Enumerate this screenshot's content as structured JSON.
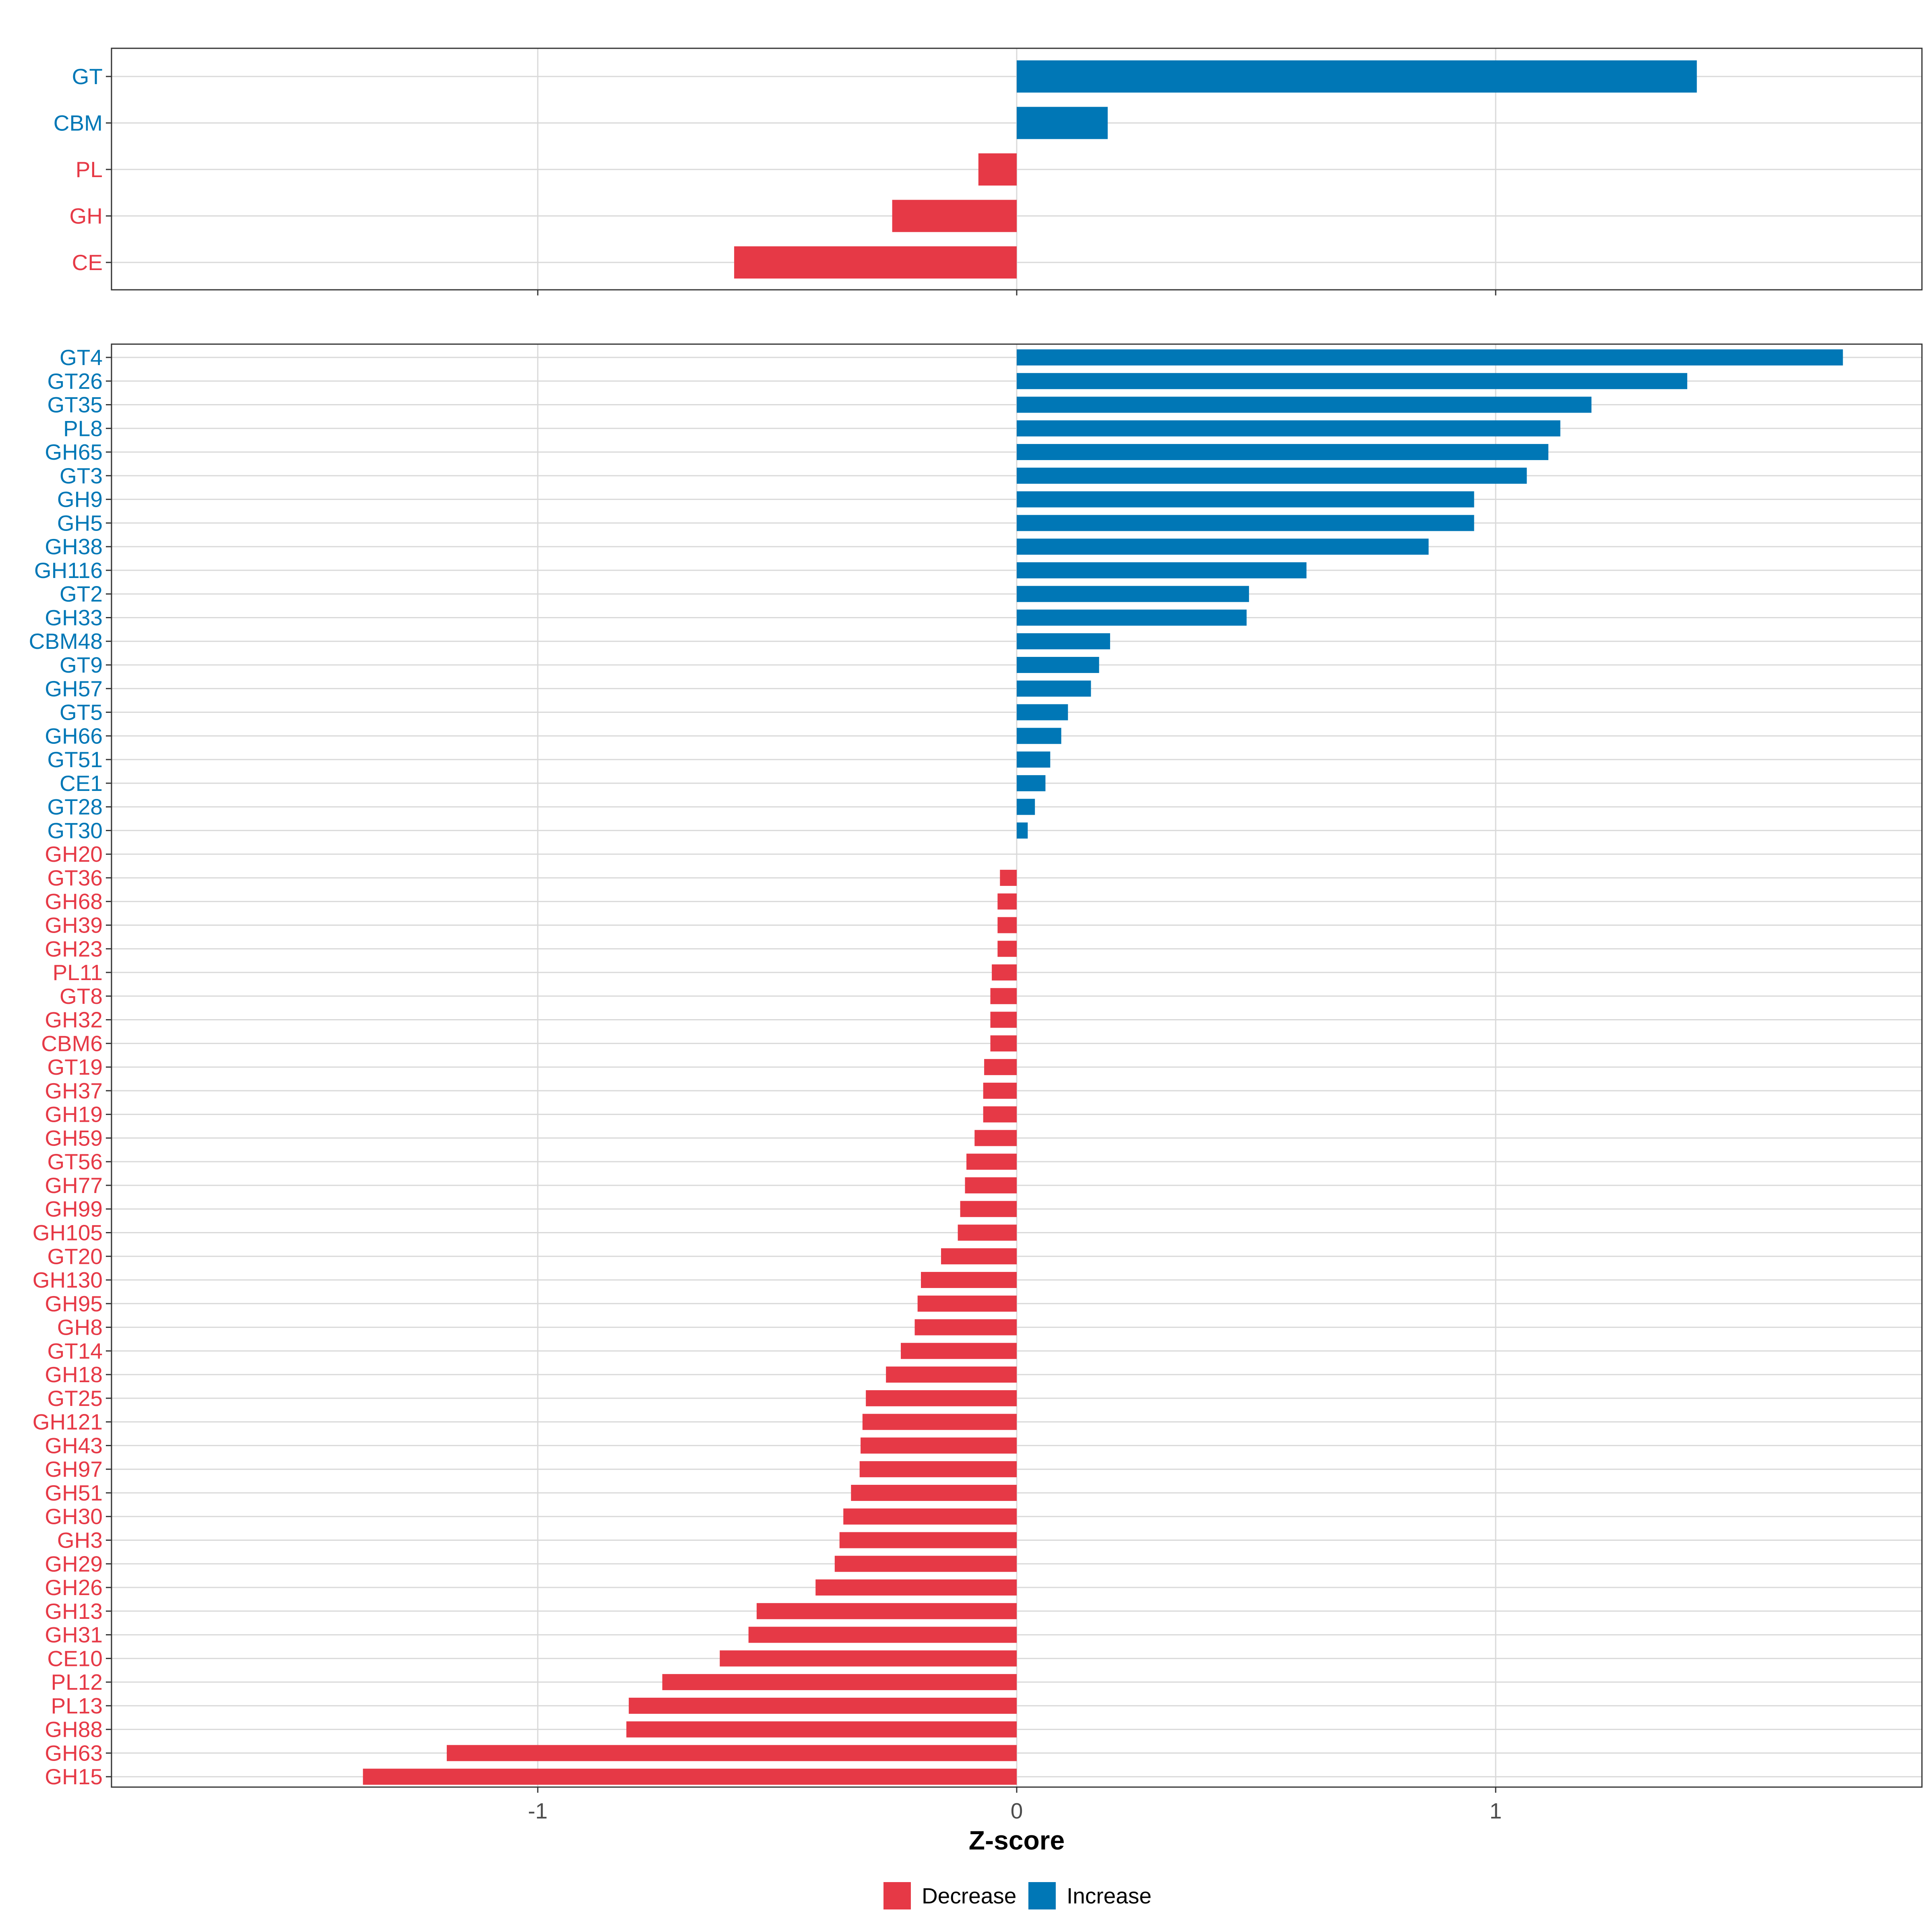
{
  "colors": {
    "decrease": "#E63946",
    "increase": "#0077B6",
    "grid": "#D9D9D9",
    "panel_border": "#333333"
  },
  "chart_data": [
    {
      "type": "bar",
      "orientation": "horizontal",
      "panel": "top",
      "categories": [
        "GT",
        "CBM",
        "PL",
        "GH",
        "CE"
      ],
      "values": [
        1.42,
        0.19,
        -0.08,
        -0.26,
        -0.59
      ],
      "directions": [
        "Increase",
        "Increase",
        "Decrease",
        "Decrease",
        "Decrease"
      ],
      "xlim": [
        -1.89,
        1.89
      ]
    },
    {
      "type": "bar",
      "orientation": "horizontal",
      "panel": "bottom",
      "categories": [
        "GT4",
        "GT26",
        "GT35",
        "PL8",
        "GH65",
        "GT3",
        "GH9",
        "GH5",
        "GH38",
        "GH116",
        "GT2",
        "GH33",
        "CBM48",
        "GT9",
        "GH57",
        "GT5",
        "GH66",
        "GT51",
        "CE1",
        "GT28",
        "GT30",
        "GH20",
        "GT36",
        "GH68",
        "GH39",
        "GH23",
        "PL11",
        "GT8",
        "GH32",
        "CBM6",
        "GT19",
        "GH37",
        "GH19",
        "GH59",
        "GT56",
        "GH77",
        "GH99",
        "GH105",
        "GT20",
        "GH130",
        "GH95",
        "GH8",
        "GT14",
        "GH18",
        "GT25",
        "GH121",
        "GH43",
        "GH97",
        "GH51",
        "GH30",
        "GH3",
        "GH29",
        "GH26",
        "GH13",
        "GH31",
        "CE10",
        "PL12",
        "PL13",
        "GH88",
        "GH63",
        "GH15"
      ],
      "values": [
        1.725,
        1.4,
        1.2,
        1.135,
        1.11,
        1.065,
        0.955,
        0.955,
        0.86,
        0.605,
        0.485,
        0.48,
        0.195,
        0.172,
        0.155,
        0.107,
        0.093,
        0.07,
        0.06,
        0.038,
        0.023,
        0.0,
        -0.035,
        -0.04,
        -0.04,
        -0.04,
        -0.052,
        -0.055,
        -0.055,
        -0.055,
        -0.068,
        -0.07,
        -0.07,
        -0.088,
        -0.105,
        -0.108,
        -0.118,
        -0.123,
        -0.158,
        -0.2,
        -0.207,
        -0.213,
        -0.242,
        -0.273,
        -0.315,
        -0.322,
        -0.326,
        -0.328,
        -0.346,
        -0.362,
        -0.37,
        -0.38,
        -0.42,
        -0.543,
        -0.56,
        -0.62,
        -0.74,
        -0.81,
        -0.815,
        -1.19,
        -1.365
      ],
      "directions": [
        "Increase",
        "Increase",
        "Increase",
        "Increase",
        "Increase",
        "Increase",
        "Increase",
        "Increase",
        "Increase",
        "Increase",
        "Increase",
        "Increase",
        "Increase",
        "Increase",
        "Increase",
        "Increase",
        "Increase",
        "Increase",
        "Increase",
        "Increase",
        "Increase",
        "Decrease",
        "Decrease",
        "Decrease",
        "Decrease",
        "Decrease",
        "Decrease",
        "Decrease",
        "Decrease",
        "Decrease",
        "Decrease",
        "Decrease",
        "Decrease",
        "Decrease",
        "Decrease",
        "Decrease",
        "Decrease",
        "Decrease",
        "Decrease",
        "Decrease",
        "Decrease",
        "Decrease",
        "Decrease",
        "Decrease",
        "Decrease",
        "Decrease",
        "Decrease",
        "Decrease",
        "Decrease",
        "Decrease",
        "Decrease",
        "Decrease",
        "Decrease",
        "Decrease",
        "Decrease",
        "Decrease",
        "Decrease",
        "Decrease",
        "Decrease",
        "Decrease",
        "Decrease"
      ],
      "xlim": [
        -1.89,
        1.89
      ],
      "xticks": [
        -1,
        0,
        1
      ],
      "xtick_labels": [
        "-1",
        "0",
        "1"
      ],
      "xlabel": "Z-score"
    }
  ],
  "legend": {
    "items": [
      {
        "label": "Decrease",
        "color_key": "decrease"
      },
      {
        "label": "Increase",
        "color_key": "increase"
      }
    ]
  }
}
